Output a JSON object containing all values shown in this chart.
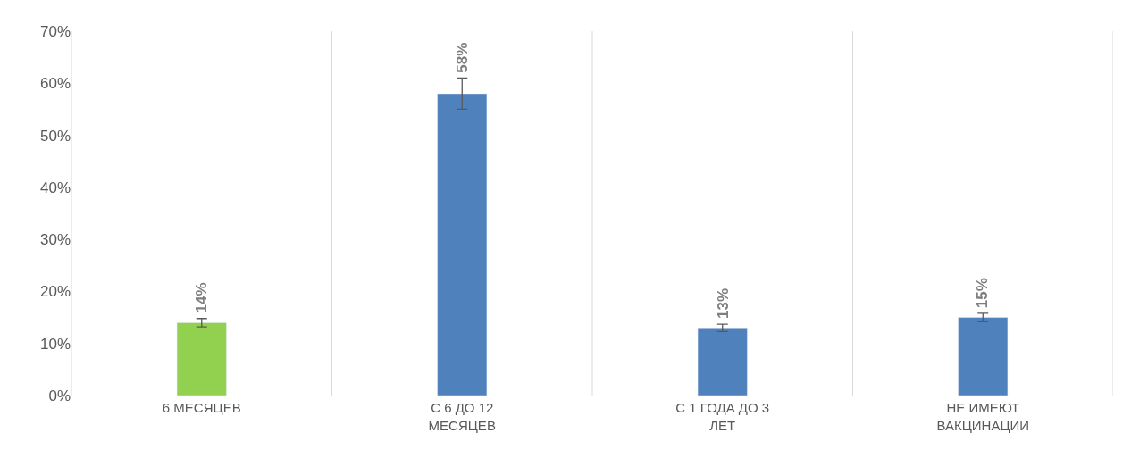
{
  "chart_data": {
    "type": "bar",
    "categories": [
      "6 МЕСЯЦЕВ",
      "С 6 ДО 12 МЕСЯЦЕВ",
      "С 1 ГОДА ДО 3 ЛЕТ",
      "НЕ ИМЕЮТ ВАКЦИНАЦИИ"
    ],
    "values": [
      14,
      58,
      13,
      15
    ],
    "colors": [
      "#92d050",
      "#4f81bd",
      "#4f81bd",
      "#4f81bd"
    ],
    "errors": [
      0.8,
      3,
      0.7,
      0.8
    ],
    "value_labels": [
      "14%",
      "58%",
      "13%",
      "15%"
    ],
    "ylim": [
      0,
      70
    ],
    "yticks": [
      {
        "value": 0,
        "label": "0%"
      },
      {
        "value": 10,
        "label": "10%"
      },
      {
        "value": 20,
        "label": "20%"
      },
      {
        "value": 30,
        "label": "30%"
      },
      {
        "value": 40,
        "label": "40%"
      },
      {
        "value": 50,
        "label": "50%"
      },
      {
        "value": 60,
        "label": "60%"
      },
      {
        "value": 70,
        "label": "70%"
      }
    ],
    "grid": "x",
    "legend": false
  }
}
